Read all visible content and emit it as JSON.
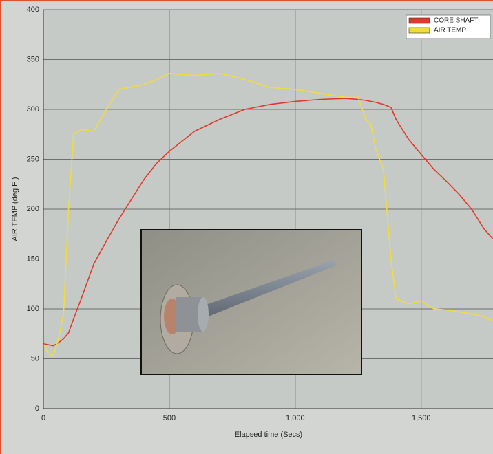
{
  "chart_data": {
    "type": "line",
    "x_label": "Elapsed time (Secs)",
    "y_label": "AIR TEMP (deg F )",
    "xlim": [
      0,
      1785
    ],
    "ylim": [
      0,
      400
    ],
    "xticks": [
      0,
      500,
      {
        "value": 1000,
        "label": "1,000"
      },
      {
        "value": 1500,
        "label": "1,500"
      }
    ],
    "yticks": [
      0,
      50,
      100,
      150,
      200,
      250,
      300,
      350,
      400
    ],
    "grid": true,
    "legend": "top-right",
    "x": [
      0,
      20,
      40,
      60,
      80,
      100,
      120,
      150,
      200,
      250,
      300,
      400,
      450,
      500,
      600,
      700,
      800,
      900,
      1000,
      1100,
      1200,
      1250,
      1280,
      1300,
      1320,
      1350,
      1380,
      1400,
      1450,
      1500,
      1550,
      1600,
      1650,
      1700,
      1750,
      1785
    ],
    "series": [
      {
        "name": "CORE SHAFT",
        "color": "#e03a2a",
        "values": [
          65,
          64,
          63,
          66,
          70,
          76,
          90,
          110,
          145,
          168,
          190,
          230,
          246,
          258,
          278,
          290,
          300,
          305,
          308,
          310,
          311,
          310,
          309,
          308,
          307,
          305,
          302,
          290,
          270,
          255,
          240,
          228,
          215,
          200,
          180,
          170
        ]
      },
      {
        "name": "AIR TEMP",
        "color": "#f2dc3a",
        "values": [
          65,
          55,
          53,
          70,
          95,
          200,
          275,
          280,
          278,
          300,
          320,
          325,
          330,
          336,
          334,
          336,
          330,
          322,
          320,
          316,
          312,
          312,
          290,
          285,
          260,
          240,
          150,
          110,
          105,
          108,
          100,
          99,
          97,
          95,
          92,
          88
        ]
      }
    ]
  }
}
